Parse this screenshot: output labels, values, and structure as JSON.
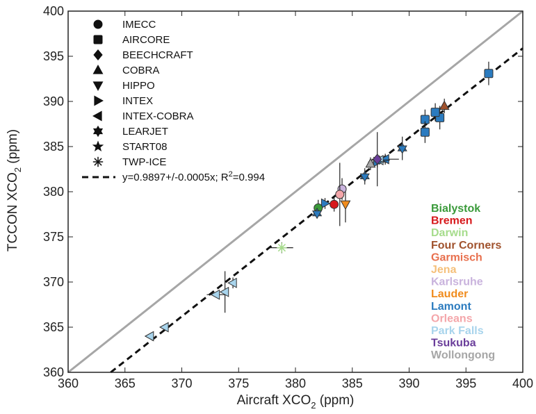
{
  "chart_data": {
    "type": "scatter",
    "xlabel": "Aircraft XCO",
    "xlabel_sub": "2",
    "xlabel_unit": " (ppm)",
    "ylabel": "TCCON XCO",
    "ylabel_sub": "2",
    "ylabel_unit": " (ppm)",
    "xlim": [
      360,
      400
    ],
    "ylim": [
      360,
      400
    ],
    "xticks": [
      360,
      365,
      370,
      375,
      380,
      385,
      390,
      395,
      400
    ],
    "yticks": [
      360,
      365,
      370,
      375,
      380,
      385,
      390,
      395,
      400
    ],
    "grid": false,
    "one_to_one_line": {
      "color": "#a6a6a6",
      "from": [
        360,
        360
      ],
      "to": [
        400,
        400
      ]
    },
    "fit": {
      "label_pre": "y=0.9897+/-0.0005x; R",
      "label_sup": "2",
      "label_post": "=0.994",
      "slope": 0.9897,
      "style": "dashed",
      "color": "#111111"
    },
    "campaigns": [
      {
        "name": "IMECC",
        "marker": "circle"
      },
      {
        "name": "AIRCORE",
        "marker": "square"
      },
      {
        "name": "BEECHCRAFT",
        "marker": "diamond"
      },
      {
        "name": "COBRA",
        "marker": "triangle-up"
      },
      {
        "name": "HIPPO",
        "marker": "triangle-down"
      },
      {
        "name": "INTEX",
        "marker": "triangle-right"
      },
      {
        "name": "INTEX-COBRA",
        "marker": "triangle-left"
      },
      {
        "name": "LEARJET",
        "marker": "hexagram"
      },
      {
        "name": "START08",
        "marker": "star"
      },
      {
        "name": "TWP-ICE",
        "marker": "asterisk"
      }
    ],
    "sites": [
      {
        "name": "Bialystok",
        "color": "#3a9a3a"
      },
      {
        "name": "Bremen",
        "color": "#d7191c"
      },
      {
        "name": "Darwin",
        "color": "#a6dc8c"
      },
      {
        "name": "Four Corners",
        "color": "#a0522d"
      },
      {
        "name": "Garmisch",
        "color": "#e8704e"
      },
      {
        "name": "Jena",
        "color": "#f5c07a"
      },
      {
        "name": "Karlsruhe",
        "color": "#c9b3dd"
      },
      {
        "name": "Lauder",
        "color": "#f08c1e"
      },
      {
        "name": "Lamont",
        "color": "#2b7bbf"
      },
      {
        "name": "Orleans",
        "color": "#f4a6aa"
      },
      {
        "name": "Park Falls",
        "color": "#a8d4ec"
      },
      {
        "name": "Tsukuba",
        "color": "#6a3d9a"
      },
      {
        "name": "Wollongong",
        "color": "#a6a6a6"
      }
    ],
    "points": [
      {
        "x": 397.0,
        "y": 393.1,
        "site": "Lamont",
        "marker": "square",
        "ex": 0,
        "ey": 1.3
      },
      {
        "x": 392.7,
        "y": 388.2,
        "site": "Lamont",
        "marker": "square",
        "ex": 0,
        "ey": 1.3
      },
      {
        "x": 392.3,
        "y": 388.8,
        "site": "Lamont",
        "marker": "square",
        "ex": 0,
        "ey": 1.0
      },
      {
        "x": 391.4,
        "y": 388.0,
        "site": "Lamont",
        "marker": "square",
        "ex": 0,
        "ey": 1.1
      },
      {
        "x": 391.4,
        "y": 386.6,
        "site": "Lamont",
        "marker": "square",
        "ex": 0,
        "ey": 1.2
      },
      {
        "x": 393.1,
        "y": 389.5,
        "site": "Four Corners",
        "marker": "triangle-up",
        "ex": 0,
        "ey": 0.8
      },
      {
        "x": 389.4,
        "y": 384.8,
        "site": "Lamont",
        "marker": "hexagram",
        "ex": 0,
        "ey": 1.3
      },
      {
        "x": 387.9,
        "y": 383.6,
        "site": "Lamont",
        "marker": "triangle-left",
        "ex": 1.2,
        "ey": 0.6
      },
      {
        "x": 387.4,
        "y": 383.5,
        "site": "Park Falls",
        "marker": "triangle-left",
        "ex": 0.9,
        "ey": 0.5
      },
      {
        "x": 387.2,
        "y": 383.3,
        "site": "Lamont",
        "marker": "triangle-right",
        "ex": 0.8,
        "ey": 0.6
      },
      {
        "x": 387.2,
        "y": 383.6,
        "site": "Tsukuba",
        "marker": "diamond",
        "ex": 0,
        "ey": 3.0
      },
      {
        "x": 386.6,
        "y": 383.1,
        "site": "Wollongong",
        "marker": "triangle-up",
        "ex": 0,
        "ey": 0.7
      },
      {
        "x": 386.1,
        "y": 381.7,
        "site": "Lamont",
        "marker": "hexagram",
        "ex": 0,
        "ey": 0.9
      },
      {
        "x": 384.4,
        "y": 378.6,
        "site": "Lauder",
        "marker": "triangle-down",
        "ex": 0,
        "ey": 2.0
      },
      {
        "x": 384.1,
        "y": 380.3,
        "site": "Karlsruhe",
        "marker": "circle",
        "ex": 0,
        "ey": 1.2
      },
      {
        "x": 383.9,
        "y": 379.7,
        "site": "Orleans",
        "marker": "circle",
        "ex": 0,
        "ey": 3.5
      },
      {
        "x": 383.4,
        "y": 378.6,
        "site": "Bremen",
        "marker": "circle",
        "ex": 0,
        "ey": 0.8
      },
      {
        "x": 382.6,
        "y": 378.7,
        "site": "Lamont",
        "marker": "triangle-right",
        "ex": 0,
        "ey": 0.6
      },
      {
        "x": 382.0,
        "y": 378.2,
        "site": "Bialystok",
        "marker": "circle",
        "ex": 0,
        "ey": 0.9
      },
      {
        "x": 381.9,
        "y": 377.6,
        "site": "Lamont",
        "marker": "hexagram",
        "ex": 0,
        "ey": 0.5
      },
      {
        "x": 378.8,
        "y": 373.8,
        "site": "Darwin",
        "marker": "asterisk",
        "ex": 1.0,
        "ey": 0.6
      },
      {
        "x": 374.5,
        "y": 369.9,
        "site": "Park Falls",
        "marker": "triangle-left",
        "ex": 0,
        "ey": 0.6
      },
      {
        "x": 373.8,
        "y": 368.9,
        "site": "Park Falls",
        "marker": "triangle-left",
        "ex": 0,
        "ey": 2.3
      },
      {
        "x": 373.0,
        "y": 368.6,
        "site": "Park Falls",
        "marker": "triangle-left",
        "ex": 0.8,
        "ey": 0.3
      },
      {
        "x": 368.5,
        "y": 365.0,
        "site": "Park Falls",
        "marker": "triangle-left",
        "ex": 0,
        "ey": 0.3
      },
      {
        "x": 367.2,
        "y": 364.0,
        "site": "Park Falls",
        "marker": "triangle-left",
        "ex": 0,
        "ey": 0.3
      }
    ]
  }
}
